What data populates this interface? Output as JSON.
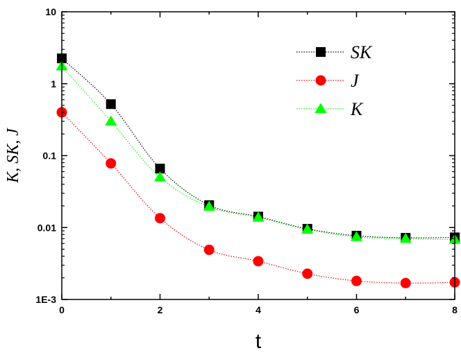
{
  "chart_data": {
    "type": "scatter",
    "xlabel": "t",
    "ylabel": "K, SK, J",
    "xlim": [
      0,
      8
    ],
    "ylim": [
      0.001,
      10
    ],
    "yscale": "log",
    "grid": false,
    "legend_position": "top-right",
    "x_ticks": [
      0,
      2,
      4,
      6,
      8
    ],
    "x_tick_labels": [
      "0",
      "2",
      "4",
      "6",
      "8"
    ],
    "y_ticks": [
      0.001,
      0.01,
      0.1,
      1,
      10
    ],
    "y_tick_labels": [
      "1E-3",
      "0.01",
      "0.1",
      "1",
      "10"
    ],
    "series": [
      {
        "name": "SK",
        "marker": "square",
        "color": "#000000",
        "x": [
          0,
          1,
          2,
          3,
          4,
          5,
          6,
          7,
          8
        ],
        "y": [
          2.25,
          0.52,
          0.066,
          0.0205,
          0.0142,
          0.0096,
          0.0077,
          0.0072,
          0.0073
        ],
        "fit_line_style": "dotted"
      },
      {
        "name": "J",
        "marker": "circle",
        "color": "#ff0000",
        "x": [
          0,
          1,
          2,
          3,
          4,
          5,
          6,
          7,
          8
        ],
        "y": [
          0.4,
          0.078,
          0.0135,
          0.0049,
          0.0034,
          0.00228,
          0.00181,
          0.00169,
          0.00173
        ],
        "fit_line_style": "dotted"
      },
      {
        "name": "K",
        "marker": "triangle",
        "color": "#00ff00",
        "x": [
          0,
          1,
          2,
          3,
          4,
          5,
          6,
          7,
          8
        ],
        "y": [
          1.75,
          0.3,
          0.05,
          0.0195,
          0.0138,
          0.0094,
          0.0074,
          0.007,
          0.0068
        ],
        "fit_line_style": "dotted"
      }
    ]
  }
}
